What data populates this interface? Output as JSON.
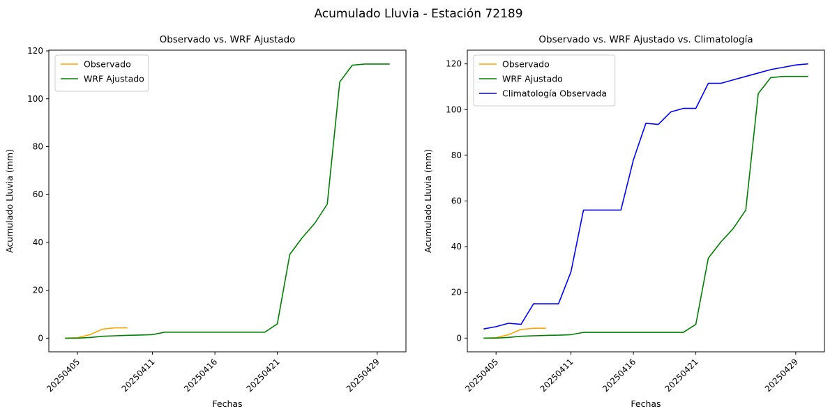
{
  "figure": {
    "title": "Acumulado Lluvia - Estación 72189"
  },
  "chart_data": {
    "type": "line",
    "xlabel": "Fechas",
    "ylabel": "Acumulado Lluvia (mm)",
    "grid": false,
    "legend_position": "upper left",
    "x_dates": [
      "20250404",
      "20250405",
      "20250406",
      "20250407",
      "20250408",
      "20250409",
      "20250410",
      "20250411",
      "20250412",
      "20250413",
      "20250414",
      "20250415",
      "20250416",
      "20250417",
      "20250418",
      "20250419",
      "20250420",
      "20250421",
      "20250422",
      "20250423",
      "20250424",
      "20250425",
      "20250426",
      "20250427",
      "20250428",
      "20250429",
      "20250430"
    ],
    "xtick_labels": [
      "20250405",
      "20250411",
      "20250416",
      "20250421",
      "20250429"
    ],
    "xtick_indices": [
      1,
      7,
      12,
      17,
      25
    ],
    "xlim": [
      -1.3,
      27.3
    ],
    "yticks": [
      0,
      20,
      40,
      60,
      80,
      100,
      120
    ],
    "series": [
      {
        "key": "observado",
        "name": "Observado",
        "color": "#ffa500",
        "values": [
          0,
          0.2,
          1.5,
          3.8,
          4.3,
          4.3,
          null,
          null,
          null,
          null,
          null,
          null,
          null,
          null,
          null,
          null,
          null,
          null,
          null,
          null,
          null,
          null,
          null,
          null,
          null,
          null,
          null
        ]
      },
      {
        "key": "wrf",
        "name": "WRF Ajustado",
        "color": "#008000",
        "values": [
          0,
          0,
          0.3,
          0.8,
          1.0,
          1.2,
          1.3,
          1.5,
          2.5,
          2.5,
          2.5,
          2.5,
          2.5,
          2.5,
          2.5,
          2.5,
          2.5,
          6,
          35,
          42,
          48,
          56,
          107,
          114,
          114.5,
          114.5,
          114.5
        ]
      },
      {
        "key": "clima",
        "name": "Climatología Observada",
        "color": "#0000ff",
        "values": [
          4,
          5,
          6.5,
          6,
          15,
          15,
          15,
          29,
          56,
          56,
          56,
          56,
          78,
          94,
          93.5,
          99,
          100.5,
          100.5,
          111.5,
          111.5,
          113,
          114.5,
          116,
          117.5,
          118.5,
          119.5,
          120
        ]
      }
    ],
    "charts": [
      {
        "name": "left-subplot",
        "title": "Observado vs. WRF Ajustado",
        "series_keys": [
          "observado",
          "wrf"
        ],
        "ylim": [
          -5.7,
          120.3
        ]
      },
      {
        "name": "right-subplot",
        "title": "Observado vs. WRF Ajustado vs. Climatología",
        "series_keys": [
          "observado",
          "wrf",
          "clima"
        ],
        "ylim": [
          -6,
          126
        ]
      }
    ]
  }
}
